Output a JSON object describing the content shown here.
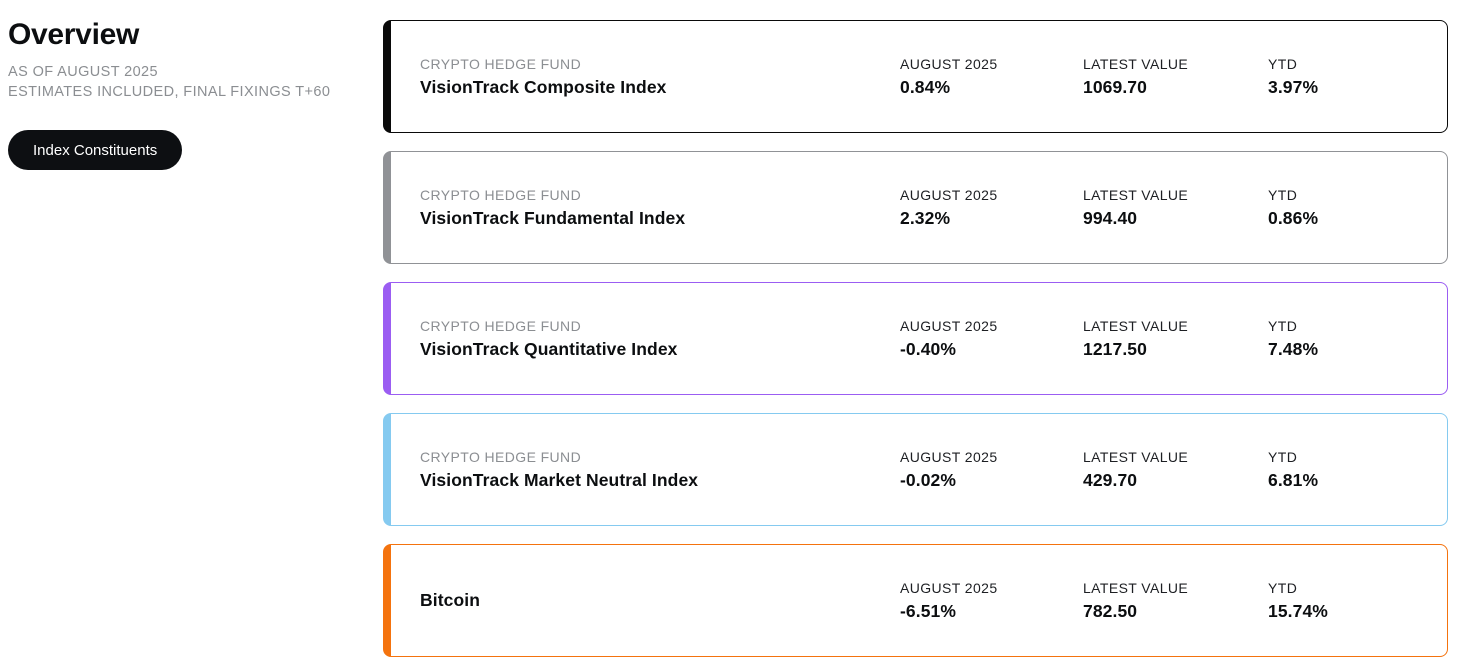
{
  "sidebar": {
    "title": "Overview",
    "as_of": "AS OF AUGUST 2025",
    "note": "ESTIMATES INCLUDED, FINAL FIXINGS T+60",
    "button_label": "Index Constituents"
  },
  "cards": [
    {
      "eyebrow": "CRYPTO HEDGE FUND",
      "name": "VisionTrack Composite Index",
      "accent_color": "#0a0a0a",
      "period_label": "AUGUST 2025",
      "period_value": "0.84%",
      "latest_label": "LATEST VALUE",
      "latest_value": "1069.70",
      "ytd_label": "YTD",
      "ytd_value": "3.97%"
    },
    {
      "eyebrow": "CRYPTO HEDGE FUND",
      "name": "VisionTrack Fundamental Index",
      "accent_color": "#909296",
      "period_label": "AUGUST 2025",
      "period_value": "2.32%",
      "latest_label": "LATEST VALUE",
      "latest_value": "994.40",
      "ytd_label": "YTD",
      "ytd_value": "0.86%"
    },
    {
      "eyebrow": "CRYPTO HEDGE FUND",
      "name": "VisionTrack Quantitative Index",
      "accent_color": "#9b5df2",
      "period_label": "AUGUST 2025",
      "period_value": "-0.40%",
      "latest_label": "LATEST VALUE",
      "latest_value": "1217.50",
      "ytd_label": "YTD",
      "ytd_value": "7.48%"
    },
    {
      "eyebrow": "CRYPTO HEDGE FUND",
      "name": "VisionTrack Market Neutral Index",
      "accent_color": "#85caf0",
      "period_label": "AUGUST 2025",
      "period_value": "-0.02%",
      "latest_label": "LATEST VALUE",
      "latest_value": "429.70",
      "ytd_label": "YTD",
      "ytd_value": "6.81%"
    },
    {
      "eyebrow": "",
      "name": "Bitcoin",
      "accent_color": "#f4730e",
      "period_label": "AUGUST 2025",
      "period_value": "-6.51%",
      "latest_label": "LATEST VALUE",
      "latest_value": "782.50",
      "ytd_label": "YTD",
      "ytd_value": "15.74%"
    }
  ]
}
